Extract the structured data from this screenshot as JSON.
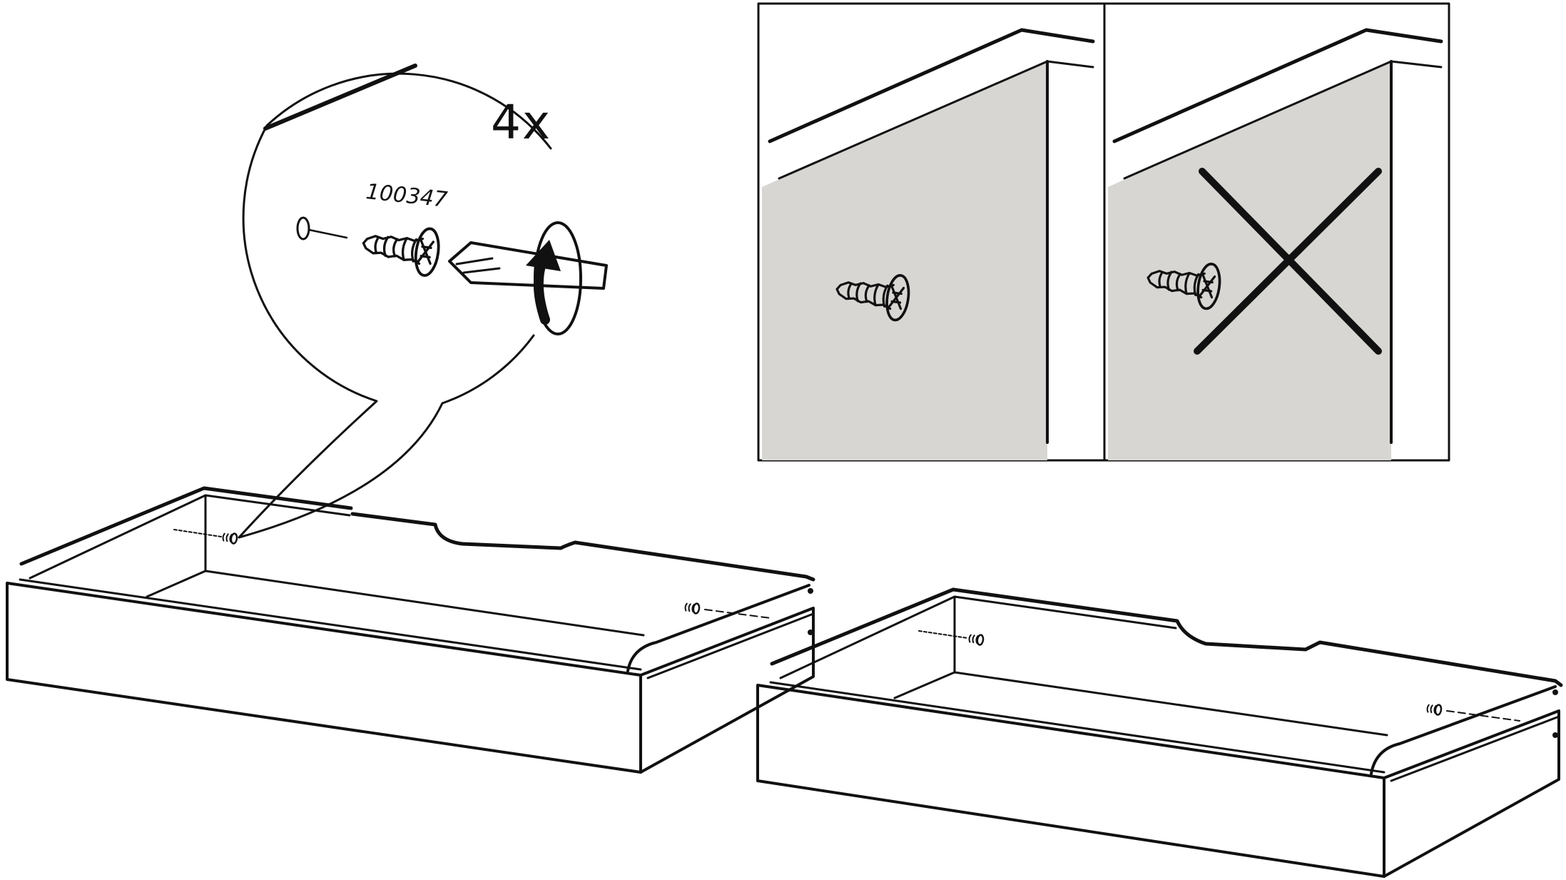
{
  "callout": {
    "quantity": "4x",
    "part_number": "100347"
  },
  "panels": {
    "correct": {
      "depicts": "screw-fully-driven",
      "status": "correct"
    },
    "incorrect": {
      "depicts": "screw-protruding",
      "status": "wrong",
      "mark": "cross-mark-icon"
    }
  },
  "icons": [
    "screw-icon",
    "screwdriver-icon",
    "rotate-arrow-icon",
    "pre-drilled-hole-icon",
    "cross-mark-icon"
  ],
  "colors": {
    "line": "#111111",
    "panel_fill": "#d7d6d3",
    "background": "#ffffff"
  }
}
